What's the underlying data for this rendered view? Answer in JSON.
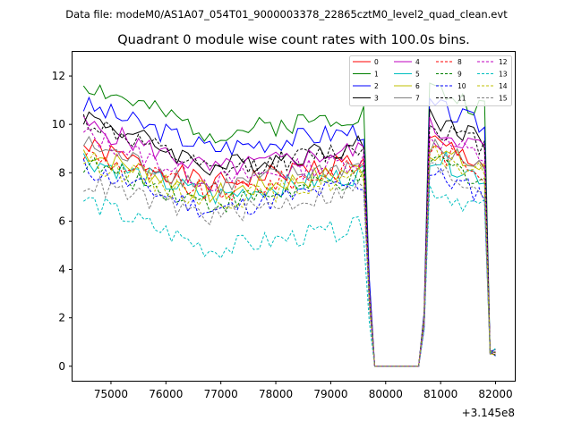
{
  "chart_data": {
    "type": "line",
    "suptitle": "Data file: modeM0/AS1A07_054T01_9000003378_22865cztM0_level2_quad_clean.evt",
    "title": "Quadrant 0 module wise count rates with 100.0s bins.",
    "xlabel": "",
    "ylabel": "",
    "x_offset_label": "+3.145e8",
    "xlim": [
      74300,
      82350
    ],
    "ylim": [
      -0.6,
      13.0
    ],
    "x_ticks": [
      75000,
      76000,
      77000,
      78000,
      79000,
      80000,
      81000,
      82000
    ],
    "x_tick_labels": [
      "75000",
      "76000",
      "77000",
      "78000",
      "79000",
      "80000",
      "81000",
      "82000"
    ],
    "y_ticks": [
      0,
      2,
      4,
      6,
      8,
      10,
      12
    ],
    "y_tick_labels": [
      "0",
      "2",
      "4",
      "6",
      "8",
      "10",
      "12"
    ],
    "legend_position": "top-right",
    "legend_columns": 4,
    "series": [
      {
        "name": "0",
        "color": "#ff0000",
        "dash": false,
        "start": 9.1,
        "mid": 7.5,
        "end": 8.6,
        "post": 9.3,
        "seed": 1
      },
      {
        "name": "1",
        "color": "#008000",
        "dash": false,
        "start": 11.7,
        "mid": 9.6,
        "end": 10.5,
        "post": 11.5,
        "seed": 2
      },
      {
        "name": "2",
        "color": "#0000ff",
        "dash": false,
        "start": 10.8,
        "mid": 9.0,
        "end": 9.8,
        "post": 10.8,
        "seed": 3
      },
      {
        "name": "3",
        "color": "#000000",
        "dash": false,
        "start": 10.4,
        "mid": 8.2,
        "end": 9.2,
        "post": 10.3,
        "seed": 4
      },
      {
        "name": "4",
        "color": "#bf00bf",
        "dash": false,
        "start": 10.0,
        "mid": 8.1,
        "end": 9.0,
        "post": 9.9,
        "seed": 5
      },
      {
        "name": "5",
        "color": "#00bfbf",
        "dash": false,
        "start": 8.6,
        "mid": 7.0,
        "end": 8.0,
        "post": 8.7,
        "seed": 6
      },
      {
        "name": "6",
        "color": "#bfbf00",
        "dash": false,
        "start": 8.9,
        "mid": 7.1,
        "end": 8.2,
        "post": 9.0,
        "seed": 7
      },
      {
        "name": "7",
        "color": "#808080",
        "dash": false,
        "start": 9.2,
        "mid": 7.4,
        "end": 8.4,
        "post": 9.1,
        "seed": 8
      },
      {
        "name": "8",
        "color": "#ff0000",
        "dash": true,
        "start": 8.8,
        "mid": 7.1,
        "end": 8.3,
        "post": 9.0,
        "seed": 9
      },
      {
        "name": "9",
        "color": "#008000",
        "dash": true,
        "start": 8.4,
        "mid": 6.7,
        "end": 7.8,
        "post": 8.6,
        "seed": 10
      },
      {
        "name": "10",
        "color": "#0000ff",
        "dash": true,
        "start": 8.2,
        "mid": 6.4,
        "end": 7.6,
        "post": 8.0,
        "seed": 11
      },
      {
        "name": "11",
        "color": "#000000",
        "dash": true,
        "start": 10.2,
        "mid": 8.0,
        "end": 9.1,
        "post": 10.0,
        "seed": 12
      },
      {
        "name": "12",
        "color": "#bf00bf",
        "dash": true,
        "start": 9.6,
        "mid": 7.6,
        "end": 8.6,
        "post": 9.5,
        "seed": 13
      },
      {
        "name": "13",
        "color": "#00bfbf",
        "dash": true,
        "start": 6.9,
        "mid": 4.8,
        "end": 5.8,
        "post": 7.4,
        "seed": 14
      },
      {
        "name": "14",
        "color": "#bfbf00",
        "dash": true,
        "start": 8.6,
        "mid": 6.8,
        "end": 7.9,
        "post": 8.8,
        "seed": 15
      },
      {
        "name": "15",
        "color": "#808080",
        "dash": true,
        "start": 7.6,
        "mid": 6.2,
        "end": 7.4,
        "post": 8.2,
        "seed": 16
      }
    ],
    "time_profile": {
      "x_start": 74500,
      "x_end": 82000,
      "bin": 100,
      "first_drop_start": 79700,
      "zero_start": 79800,
      "zero_end": 80600,
      "recovery_end": 80800,
      "final_drop_start": 81900
    }
  }
}
